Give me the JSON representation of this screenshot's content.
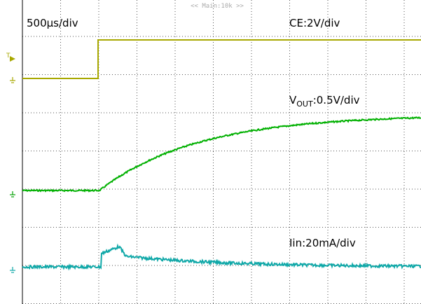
{
  "header": {
    "title": "<< Main:10k >>"
  },
  "labels": {
    "timebase": "500µs/div",
    "ce": "CE:2V/div",
    "vout": {
      "main": "V",
      "sub": "OUT",
      "rest": ":0.5V/div"
    },
    "iin": "Iin:20mA/div"
  }
}
